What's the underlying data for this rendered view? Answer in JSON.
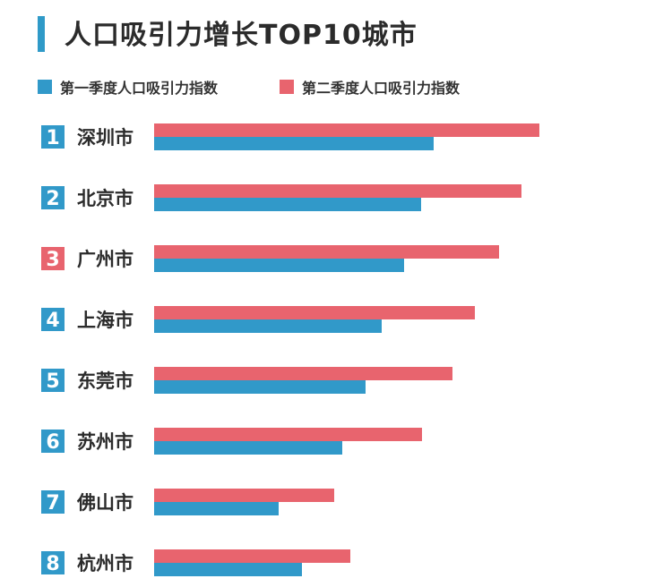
{
  "title": "人口吸引力增长TOP10城市",
  "colors": {
    "accent": "#2f9ac8",
    "q1": "#3199c9",
    "q2": "#e8646e",
    "rank_highlight": "#e8646e"
  },
  "chart_data": {
    "type": "bar",
    "orientation": "horizontal",
    "title": "人口吸引力增长TOP10城市",
    "legend_position": "top-left",
    "grid": false,
    "categories": [
      "深圳市",
      "北京市",
      "广州市",
      "上海市",
      "东莞市",
      "苏州市",
      "佛山市",
      "杭州市"
    ],
    "ranks": [
      "1",
      "2",
      "3",
      "4",
      "5",
      "6",
      "7",
      "8"
    ],
    "rank_colors": [
      "#3199c9",
      "#3199c9",
      "#e8646e",
      "#3199c9",
      "#3199c9",
      "#3199c9",
      "#3199c9",
      "#3199c9"
    ],
    "series": [
      {
        "name": "第一季度人口吸引力指数",
        "color": "#3199c9",
        "values": [
          31.2,
          29.8,
          27.9,
          25.4,
          23.6,
          21.0,
          13.9,
          16.5
        ]
      },
      {
        "name": "第二季度人口吸引力指数",
        "color": "#e8646e",
        "values": [
          43.0,
          41.0,
          38.5,
          35.8,
          33.3,
          29.9,
          20.1,
          21.9
        ]
      }
    ],
    "xlim": [
      0,
      45
    ]
  }
}
